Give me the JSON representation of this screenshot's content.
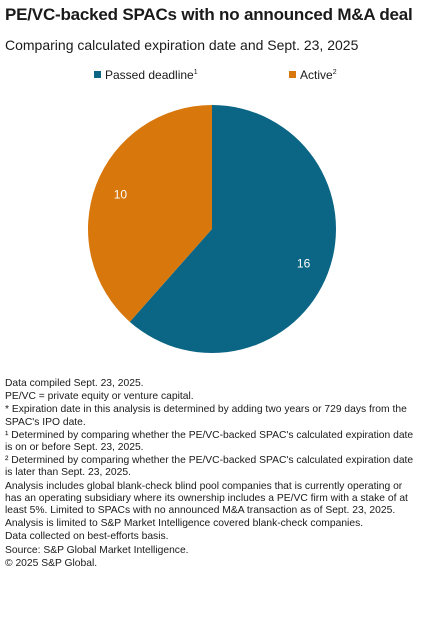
{
  "title": "PE/VC-backed SPACs with no announced M&A deal",
  "subtitle": "Comparing calculated expiration date and Sept. 23, 2025",
  "colors": {
    "passed_deadline": "#0b6584",
    "active": "#d8770b"
  },
  "legend": [
    {
      "label": "Passed deadline",
      "sup": "1",
      "color": "#0b6584"
    },
    {
      "label": "Active",
      "sup": "2",
      "color": "#d8770b"
    }
  ],
  "chart_data": {
    "type": "pie",
    "title": "PE/VC-backed SPACs with no announced M&A deal",
    "subtitle": "Comparing calculated expiration date and Sept. 23, 2025",
    "categories": [
      "Passed deadline",
      "Active"
    ],
    "values": [
      16,
      10
    ],
    "colors": [
      "#0b6584",
      "#d8770b"
    ],
    "data_labels": [
      "16",
      "10"
    ],
    "legend_placement": "top"
  },
  "notes": [
    "Data compiled Sept. 23, 2025.",
    "PE/VC = private equity or venture capital.",
    "* Expiration date in this analysis is determined by adding two years or 729 days from the SPAC's IPO date.",
    "¹ Determined by comparing whether the PE/VC-backed SPAC's calculated expiration date is on or before Sept. 23, 2025.",
    "² Determined by comparing whether the PE/VC-backed SPAC's calculated expiration date is later than Sept. 23, 2025.",
    "Analysis includes global blank-check blind pool companies that is currently operating or has an operating subsidiary where its ownership includes a PE/VC firm with a stake of at least 5%. Limited to SPACs with no announced M&A transaction as of Sept. 23, 2025.",
    "Analysis is limited to S&P Market Intelligence covered blank-check companies.",
    "Data collected on best-efforts basis.",
    "Source: S&P Global Market Intelligence.",
    "© 2025 S&P Global."
  ]
}
